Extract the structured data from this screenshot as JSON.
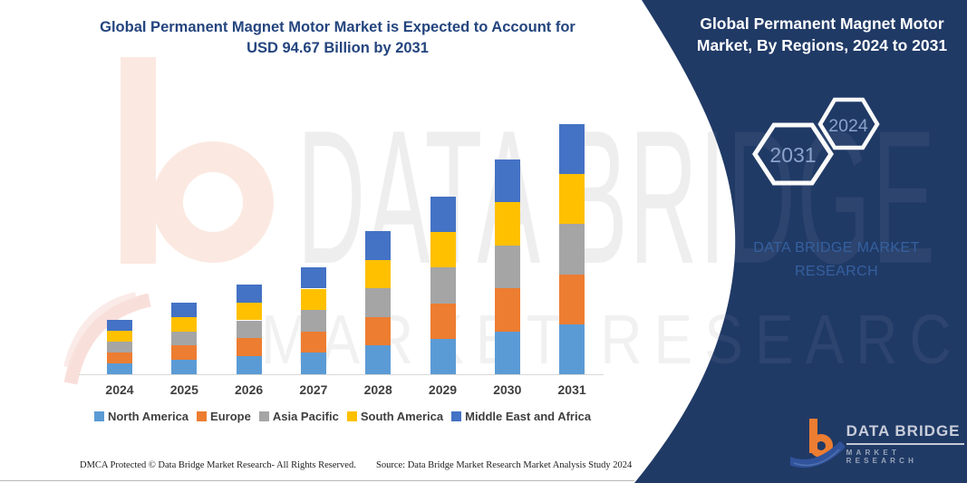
{
  "header": {
    "line1": "Global Permanent Magnet Motor Market is Expected to Account for",
    "line2": "USD 94.67 Billion by 2031"
  },
  "panel": {
    "title": "Global Permanent Magnet Motor Market, By Regions, 2024 to 2031",
    "hexagon_back_label": "2031",
    "hexagon_front_label": "2024",
    "brand_line1": "DATA BRIDGE MARKET",
    "brand_line2": "RESEARCH",
    "background_color": "#203A66",
    "logo": {
      "name": "DATA BRIDGE",
      "sub": "MARKET RESEARCH",
      "orange": "#ED7D31"
    }
  },
  "watermark": {
    "line1": "DATA BRIDGE",
    "line2": "MARKET RESEARCH"
  },
  "footer": {
    "left": "DMCA Protected © Data Bridge Market Research-  All Rights Reserved.",
    "right": "Source: Data Bridge Market Research  Market Analysis Study 2024"
  },
  "chart_data": {
    "type": "bar",
    "subtype": "stacked-vertical",
    "title": "Global Permanent Magnet Motor Market is Expected to Account for USD 94.67 Billion by 2031",
    "unit": "USD Billion",
    "categories": [
      "2024",
      "2025",
      "2026",
      "2027",
      "2028",
      "2029",
      "2030",
      "2031"
    ],
    "totals": [
      20.6,
      27.1,
      34.0,
      40.5,
      54.2,
      67.2,
      81.3,
      94.67
    ],
    "annotation": "USD 94.67 Billion by 2031",
    "series": [
      {
        "name": "North America",
        "color": "#5B9BD5",
        "values": [
          4.12,
          5.42,
          6.8,
          8.1,
          10.84,
          13.44,
          16.26,
          18.93
        ]
      },
      {
        "name": "Europe",
        "color": "#ED7D31",
        "values": [
          4.12,
          5.42,
          6.8,
          8.1,
          10.84,
          13.44,
          16.26,
          18.93
        ]
      },
      {
        "name": "Asia Pacific",
        "color": "#A5A5A5",
        "values": [
          4.12,
          5.42,
          6.8,
          8.1,
          10.84,
          13.44,
          16.26,
          18.93
        ]
      },
      {
        "name": "South America",
        "color": "#FFC000",
        "values": [
          4.12,
          5.42,
          6.8,
          8.1,
          10.84,
          13.44,
          16.26,
          18.93
        ]
      },
      {
        "name": "Middle East and Africa",
        "color": "#4472C4",
        "values": [
          4.12,
          5.42,
          6.8,
          8.1,
          10.84,
          13.44,
          16.26,
          18.93
        ]
      }
    ],
    "legend_position": "bottom",
    "gridlines": false,
    "y_axis_visible": false,
    "x_axis_line_color": "#D9D9D9"
  }
}
